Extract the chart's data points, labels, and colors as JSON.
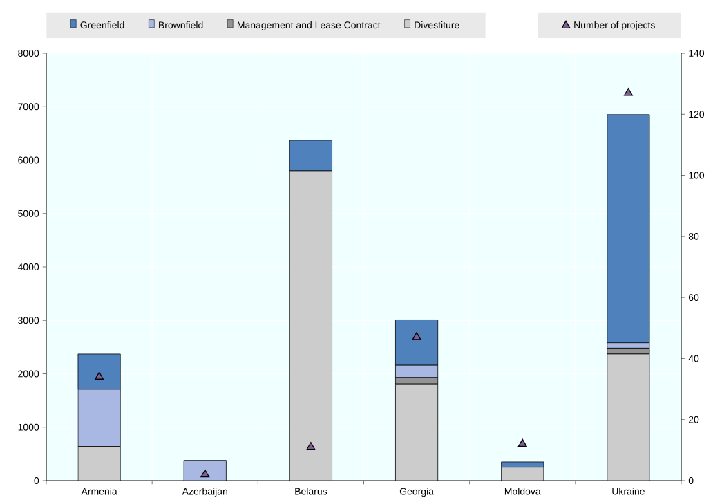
{
  "chart_data": {
    "type": "bar",
    "stacked": true,
    "categories": [
      "Armenia",
      "Azerbaijan",
      "Belarus",
      "Georgia",
      "Moldova",
      "Ukraine"
    ],
    "series": [
      {
        "name": "Divestiture",
        "color": "#cccccc",
        "values": [
          640,
          0,
          5800,
          1810,
          250,
          2370
        ]
      },
      {
        "name": "Management and Lease Contract",
        "color": "#939393",
        "values": [
          0,
          0,
          0,
          120,
          0,
          110
        ]
      },
      {
        "name": "Brownfield",
        "color": "#a9b8e3",
        "values": [
          1070,
          380,
          0,
          230,
          0,
          100
        ]
      },
      {
        "name": "Greenfield",
        "color": "#4f81bd",
        "values": [
          660,
          0,
          570,
          850,
          100,
          4270
        ]
      },
      {
        "name": "Number of projects",
        "type": "scatter",
        "axis": "y2",
        "color": "#7e5f96",
        "values": [
          34,
          2,
          11,
          47,
          12,
          127
        ]
      }
    ],
    "ylim": [
      0,
      8000
    ],
    "yticks": [
      0,
      1000,
      2000,
      3000,
      4000,
      5000,
      6000,
      7000,
      8000
    ],
    "y2lim": [
      0,
      140
    ],
    "y2ticks": [
      0,
      20,
      40,
      60,
      80,
      100,
      120,
      140
    ],
    "grid": true,
    "legend": "top",
    "marker": "triangle"
  }
}
